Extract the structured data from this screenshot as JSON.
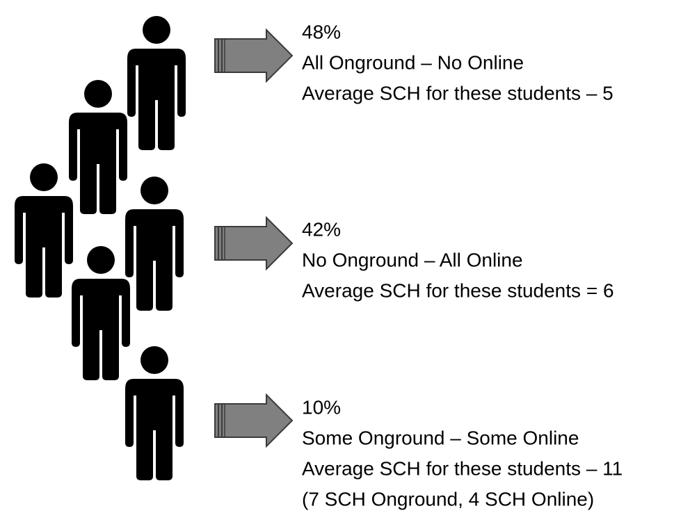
{
  "groups": [
    {
      "percent": "48%",
      "description": "All Onground – No Online",
      "average": "Average SCH for these students – 5"
    },
    {
      "percent": "42%",
      "description": "No Onground – All Online",
      "average": "Average SCH for these students = 6"
    },
    {
      "percent": "10%",
      "description": "Some Onground – Some Online",
      "average": "Average SCH for these students – 11",
      "note": "(7 SCH Onground, 4 SCH Online)"
    }
  ]
}
